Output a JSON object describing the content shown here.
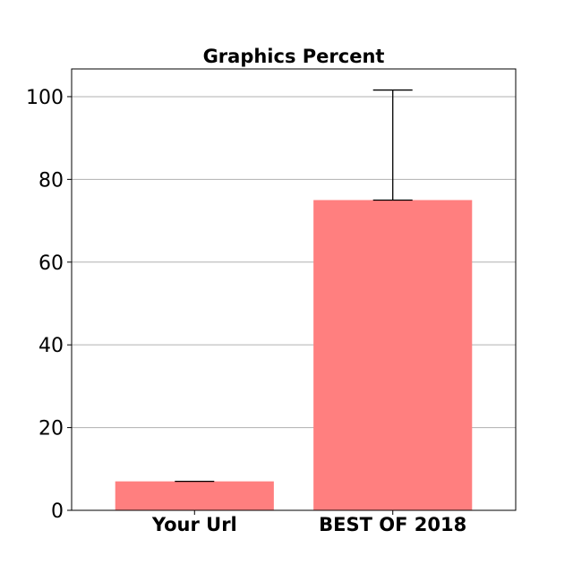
{
  "chart_data": {
    "type": "bar",
    "title": "Graphics Percent",
    "xlabel": "",
    "ylabel": "",
    "categories": [
      "Your Url",
      "BEST OF 2018"
    ],
    "values": [
      7,
      75
    ],
    "errors": [
      0,
      26.6
    ],
    "ylim": [
      0,
      106.7
    ],
    "yticks": [
      0,
      20,
      40,
      60,
      80,
      100
    ],
    "grid": "y",
    "bar_color": "#ff7f7f",
    "legend": "none"
  }
}
